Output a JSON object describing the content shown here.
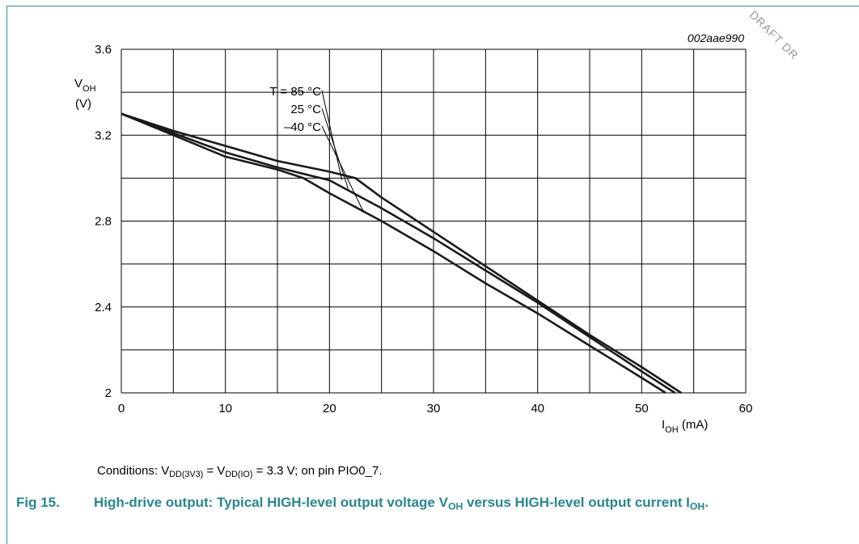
{
  "watermark": "DRAFT DR",
  "figure_id": "002aae990",
  "conditions": {
    "prefix": "Conditions: V",
    "sub1": "DD(3V3)",
    "mid": " = V",
    "sub2": "DD(IO)",
    "suffix": " = 3.3 V; on pin PIO0_7."
  },
  "caption": {
    "number": "Fig 15.",
    "text_a": "High-drive output: Typical HIGH-level output voltage V",
    "sub_a": "OH",
    "text_b": " versus HIGH-level output current I",
    "sub_b": "OH",
    "text_c": "."
  },
  "chart_data": {
    "type": "line",
    "y_axis": {
      "symbol": "V",
      "symbol_sub": "OH",
      "unit": "(V)"
    },
    "x_axis": {
      "symbol": "I",
      "symbol_sub": "OH",
      "unit": " (mA)"
    },
    "xlim": [
      0,
      60
    ],
    "ylim": [
      2,
      3.6
    ],
    "x_ticks": [
      0,
      10,
      20,
      30,
      40,
      50,
      60
    ],
    "x_tick_labels": [
      "0",
      "10",
      "20",
      "30",
      "40",
      "50",
      "60"
    ],
    "y_ticks": [
      2,
      2.4,
      2.8,
      3.2,
      3.6
    ],
    "y_tick_labels": [
      "2",
      "2.4",
      "2.8",
      "3.2",
      "3.6"
    ],
    "x_grid_step": 5,
    "y_grid_step": 0.2,
    "grid": true,
    "series": [
      {
        "name": "T = 85 °C",
        "x": [
          0,
          5,
          10,
          15,
          20,
          22.5,
          25,
          30,
          35,
          40,
          45,
          50,
          53.8
        ],
        "y": [
          3.3,
          3.22,
          3.15,
          3.08,
          3.03,
          3.0,
          2.91,
          2.75,
          2.59,
          2.43,
          2.27,
          2.12,
          2.0
        ]
      },
      {
        "name": "25 °C",
        "x": [
          0,
          5,
          10,
          15,
          20,
          25,
          30,
          35,
          40,
          45,
          50,
          53.2
        ],
        "y": [
          3.3,
          3.21,
          3.12,
          3.05,
          2.99,
          2.86,
          2.72,
          2.57,
          2.42,
          2.26,
          2.1,
          2.0
        ]
      },
      {
        "name": "–40 °C",
        "x": [
          0,
          5,
          10,
          15,
          17.5,
          20,
          25,
          30,
          35,
          40,
          45,
          50,
          52.3
        ],
        "y": [
          3.3,
          3.2,
          3.1,
          3.04,
          3.0,
          2.93,
          2.8,
          2.66,
          2.51,
          2.37,
          2.22,
          2.07,
          2.0
        ]
      }
    ],
    "curve_labels": [
      {
        "text": "T = 85 °C",
        "x": 21.2,
        "y": 2.99
      },
      {
        "text": "25 °C",
        "x": 21.8,
        "y": 2.95
      },
      {
        "text": "–40 °C",
        "x": 23.3,
        "y": 2.84
      }
    ]
  }
}
